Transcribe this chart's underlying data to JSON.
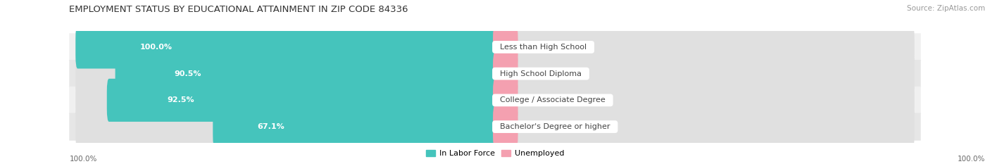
{
  "title": "EMPLOYMENT STATUS BY EDUCATIONAL ATTAINMENT IN ZIP CODE 84336",
  "source": "Source: ZipAtlas.com",
  "categories": [
    "Less than High School",
    "High School Diploma",
    "College / Associate Degree",
    "Bachelor's Degree or higher"
  ],
  "labor_force": [
    100.0,
    90.5,
    92.5,
    67.1
  ],
  "unemployed": [
    0.0,
    0.0,
    0.0,
    0.0
  ],
  "labor_force_color": "#45C4BC",
  "unemployed_color": "#F4A0B0",
  "row_bg_even": "#F0F0F0",
  "row_bg_odd": "#E6E6E6",
  "bar_bg_color": "#E0E0E0",
  "title_fontsize": 9.5,
  "source_fontsize": 7.5,
  "bar_label_fontsize": 8,
  "category_fontsize": 8,
  "axis_label_fontsize": 7.5,
  "legend_fontsize": 8,
  "figsize": [
    14.06,
    2.33
  ],
  "dpi": 100,
  "background_color": "#FFFFFF",
  "left_axis_label": "100.0%",
  "right_axis_label": "100.0%"
}
